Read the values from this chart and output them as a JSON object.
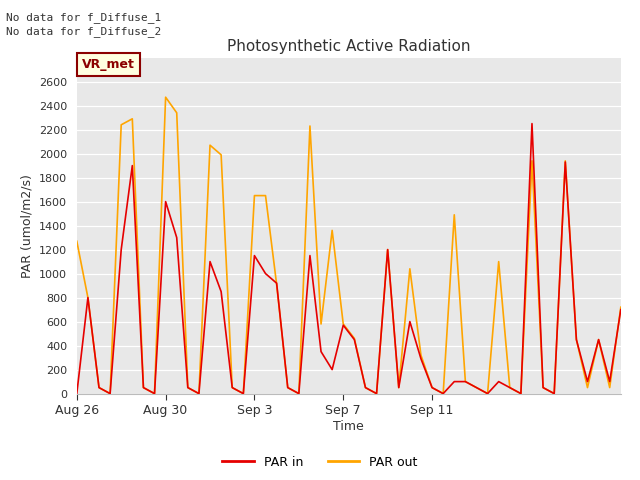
{
  "title": "Photosynthetic Active Radiation",
  "xlabel": "Time",
  "ylabel": "PAR (umol/m2/s)",
  "ylim": [
    0,
    2800
  ],
  "yticks": [
    0,
    200,
    400,
    600,
    800,
    1000,
    1200,
    1400,
    1600,
    1800,
    2000,
    2200,
    2400,
    2600
  ],
  "annotations": [
    "No data for f_Diffuse_1",
    "No data for f_Diffuse_2"
  ],
  "legend_box_label": "VR_met",
  "legend_entries": [
    "PAR in",
    "PAR out"
  ],
  "par_in_color": "#e60000",
  "par_out_color": "#ffa500",
  "fig_bg_color": "#ffffff",
  "plot_bg_color": "#e8e8e8",
  "x_tick_labels": [
    "Aug 26",
    "Aug 30",
    "Sep 3",
    "Sep 7",
    "Sep 11"
  ],
  "par_in": [
    0,
    800,
    50,
    0,
    1200,
    1900,
    50,
    0,
    1600,
    1300,
    50,
    0,
    1100,
    850,
    50,
    0,
    1150,
    1000,
    920,
    50,
    0,
    1150,
    350,
    200,
    570,
    450,
    50,
    0,
    1200,
    50,
    600,
    290,
    50,
    0,
    100,
    100,
    50,
    0,
    100,
    50,
    0,
    2250,
    50,
    0,
    1930,
    450,
    100,
    450,
    100,
    700
  ],
  "par_out": [
    1270,
    800,
    50,
    0,
    2240,
    2290,
    50,
    0,
    2470,
    2340,
    50,
    0,
    2070,
    1990,
    50,
    0,
    1650,
    1650,
    910,
    50,
    0,
    2230,
    580,
    1360,
    580,
    460,
    50,
    0,
    1200,
    50,
    1040,
    320,
    50,
    0,
    1490,
    100,
    50,
    0,
    1100,
    50,
    0,
    1940,
    50,
    0,
    1940,
    450,
    50,
    450,
    50,
    720
  ],
  "x_tick_positions_data": [
    0,
    8,
    16,
    24,
    32
  ],
  "n_points": 50
}
